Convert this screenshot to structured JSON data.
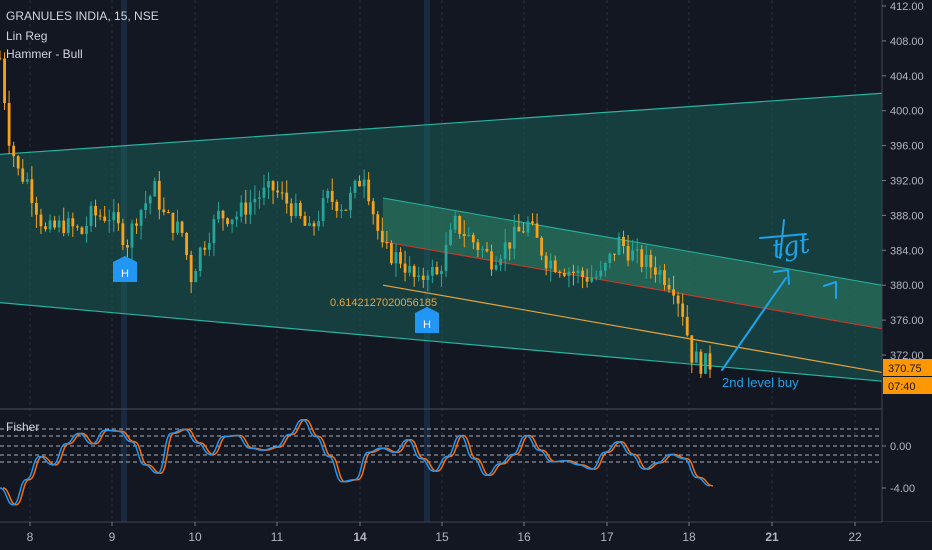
{
  "header": {
    "symbol_line": "GRANULES INDIA, 15, NSE",
    "indicator_1": "Lin Reg",
    "indicator_2": "Hammer - Bull"
  },
  "price_axis": {
    "ticks": [
      "412.00",
      "408.00",
      "404.00",
      "400.00",
      "396.00",
      "392.00",
      "388.00",
      "384.00",
      "380.00",
      "376.00",
      "372.00"
    ],
    "last_price": "370.75",
    "countdown": "07:40"
  },
  "osc_axis": {
    "ticks": [
      "0.00",
      "-4.00"
    ]
  },
  "time_axis": {
    "labels": [
      {
        "text": "8",
        "bold": false
      },
      {
        "text": "9",
        "bold": false
      },
      {
        "text": "10",
        "bold": false
      },
      {
        "text": "11",
        "bold": false
      },
      {
        "text": "14",
        "bold": true
      },
      {
        "text": "15",
        "bold": false
      },
      {
        "text": "16",
        "bold": false
      },
      {
        "text": "17",
        "bold": false
      },
      {
        "text": "18",
        "bold": false
      },
      {
        "text": "21",
        "bold": true
      },
      {
        "text": "22",
        "bold": false
      }
    ]
  },
  "annotations": {
    "lr_label": "0.6142127020056185",
    "buy_text": "2nd level buy",
    "tgt_text": "tgt",
    "hammer_marker": "H"
  },
  "oscillator": {
    "name": "Fisher"
  },
  "colors": {
    "background": "#131722",
    "bull": "#26a69a",
    "bear": "#f7a21b",
    "channel_fill": "#1b5e57",
    "channel_line": "#27b3a0",
    "inner_channel_fill": "#2e7d62",
    "red_line": "#c0392b",
    "orange_line": "#e8a33d",
    "annotation_blue": "#1ea2e8",
    "hammer_marker": "#2196f3",
    "fisher_1": "#2196f3",
    "fisher_2": "#ff6d00",
    "price_label_bg": "#ff9800"
  },
  "chart_data": {
    "type": "candlestick",
    "symbol": "GRANULES INDIA",
    "interval": "15",
    "exchange": "NSE",
    "y_range": [
      368,
      413
    ],
    "last_price": 370.75,
    "x_days": [
      "8",
      "9",
      "10",
      "11",
      "14",
      "15",
      "16",
      "17",
      "18",
      "21",
      "22"
    ],
    "close_path": [
      [
        0,
        406
      ],
      [
        2,
        397
      ],
      [
        4,
        393
      ],
      [
        6,
        392
      ],
      [
        10,
        386
      ],
      [
        14,
        387
      ],
      [
        18,
        386
      ],
      [
        20,
        388
      ],
      [
        24,
        388
      ],
      [
        28,
        385
      ],
      [
        30,
        388
      ],
      [
        34,
        391
      ],
      [
        36,
        388
      ],
      [
        40,
        386
      ],
      [
        42,
        381
      ],
      [
        44,
        384
      ],
      [
        48,
        388
      ],
      [
        52,
        388
      ],
      [
        56,
        390
      ],
      [
        60,
        391
      ],
      [
        64,
        389
      ],
      [
        68,
        386
      ],
      [
        72,
        390
      ],
      [
        76,
        389
      ],
      [
        80,
        393
      ],
      [
        84,
        384
      ],
      [
        88,
        383
      ],
      [
        92,
        380
      ],
      [
        94,
        382
      ],
      [
        96,
        381
      ],
      [
        100,
        387
      ],
      [
        104,
        385
      ],
      [
        108,
        383
      ],
      [
        112,
        385
      ],
      [
        116,
        387
      ],
      [
        120,
        383
      ],
      [
        124,
        382
      ],
      [
        128,
        381
      ],
      [
        132,
        381
      ],
      [
        136,
        385
      ],
      [
        140,
        383
      ],
      [
        144,
        382
      ],
      [
        148,
        380
      ],
      [
        150,
        377
      ],
      [
        152,
        372
      ],
      [
        154,
        371
      ],
      [
        156,
        371
      ]
    ],
    "hammer_signals": [
      {
        "day": "9",
        "price": 382
      },
      {
        "day": "14",
        "price": 377
      }
    ],
    "regression_channel": {
      "outer": {
        "upper": [
          395,
          402
        ],
        "lower": [
          378,
          369
        ]
      },
      "inner": {
        "upper": [
          390,
          380
        ],
        "mid": [
          385,
          375
        ],
        "lower": [
          380,
          370
        ]
      },
      "coefficient": "0.6142127020056185"
    },
    "fisher": {
      "name": "Fisher",
      "levels": [
        1.3,
        0.6,
        0.0,
        -0.6,
        -1.3
      ],
      "y_ticks": [
        0.0,
        -4.0
      ],
      "series": [
        [
          -4.0,
          -5.6,
          -3.2,
          -1.0,
          -1.8,
          0.2,
          1.2,
          0.2,
          1.5,
          1.4,
          0.4,
          -1.8,
          -2.6,
          1.2,
          1.6,
          0.3,
          -0.8,
          0.9,
          1.0,
          -0.2,
          -0.4,
          -0.1,
          1.1,
          2.5,
          0.9,
          -1.0,
          -3.4,
          -3.2,
          -0.6,
          -0.2,
          -0.6,
          0.6,
          -1.2,
          -2.4,
          -1.0,
          1.0,
          -1.2,
          -2.8,
          -1.7,
          -0.8,
          1.0,
          -0.4,
          -1.5,
          -1.4,
          -1.8,
          -2.2,
          -0.6,
          0.4,
          -0.8,
          -2.2,
          -1.6,
          -0.8,
          -1.2,
          -3.0,
          -3.8
        ]
      ]
    }
  }
}
